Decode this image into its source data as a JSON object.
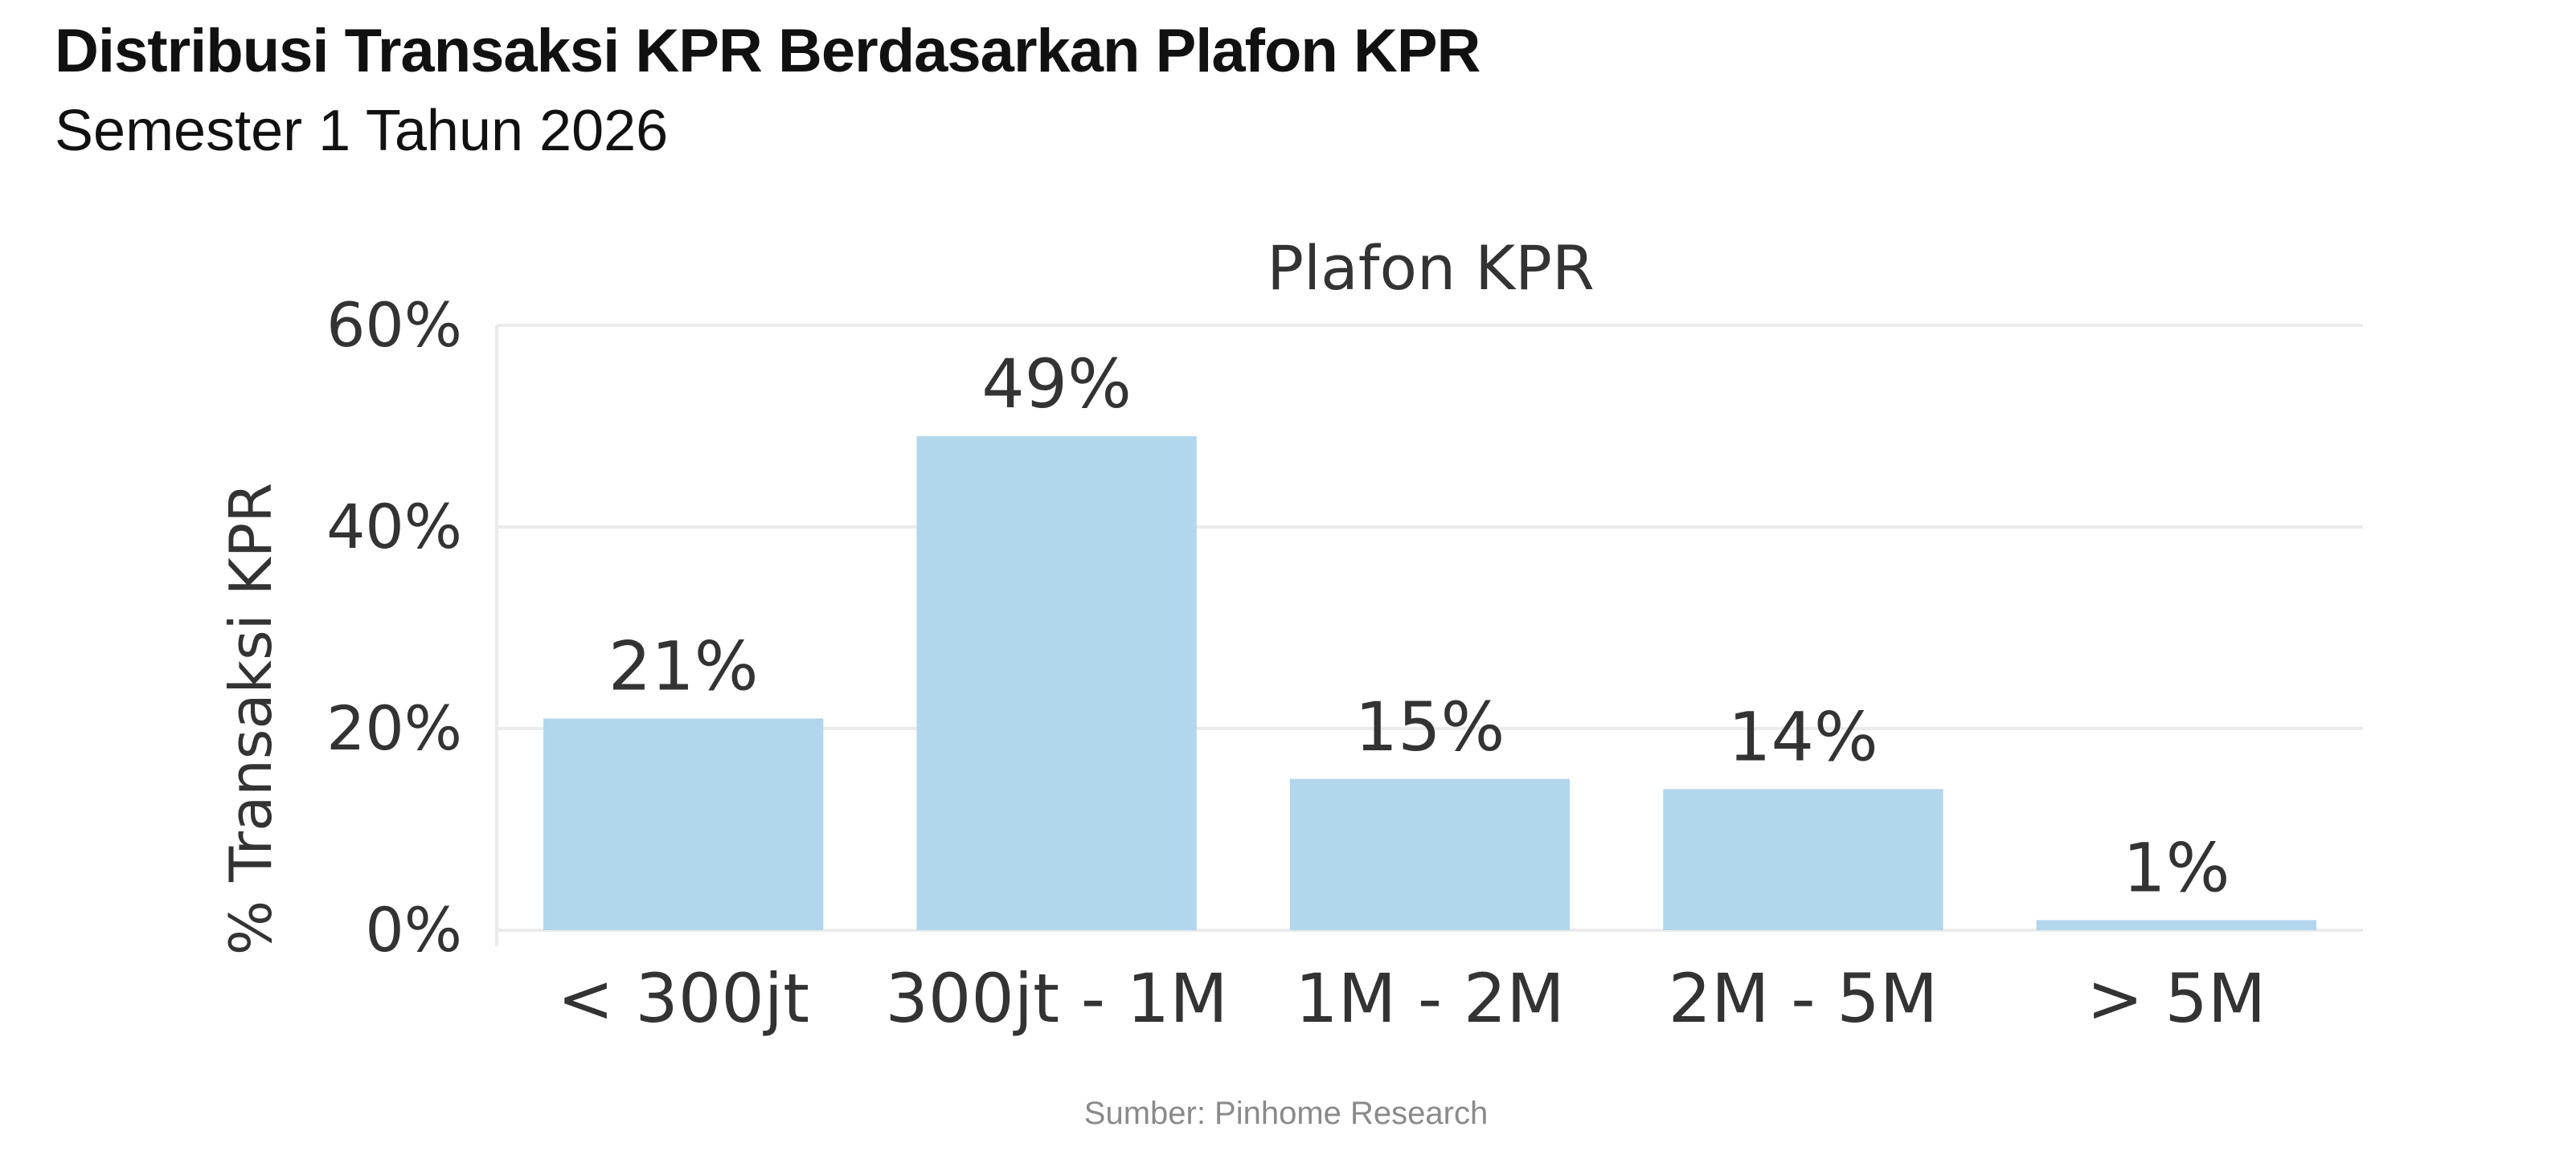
{
  "header": {
    "title": "Distribusi Transaksi KPR Berdasarkan Plafon KPR",
    "subtitle": "Semester 1 Tahun 2026"
  },
  "footer": {
    "source": "Sumber: Pinhome Research"
  },
  "colors": {
    "bar": "#b2d6ec",
    "grid": "#ebebeb",
    "text": "#333333"
  },
  "chart_data": {
    "type": "bar",
    "title": "Plafon KPR",
    "ylabel": "% Transaksi KPR",
    "xlabel": "",
    "categories": [
      "< 300jt",
      "300jt - 1M",
      "1M - 2M",
      "2M - 5M",
      "> 5M"
    ],
    "values": [
      21,
      49,
      15,
      14,
      1
    ],
    "data_labels": [
      "21%",
      "49%",
      "15%",
      "14%",
      "1%"
    ],
    "yticks": [
      0,
      20,
      40,
      60
    ],
    "ytick_labels": [
      "0%",
      "20%",
      "40%",
      "60%"
    ],
    "ylim": [
      0,
      60
    ],
    "grid": true,
    "legend": "none"
  }
}
